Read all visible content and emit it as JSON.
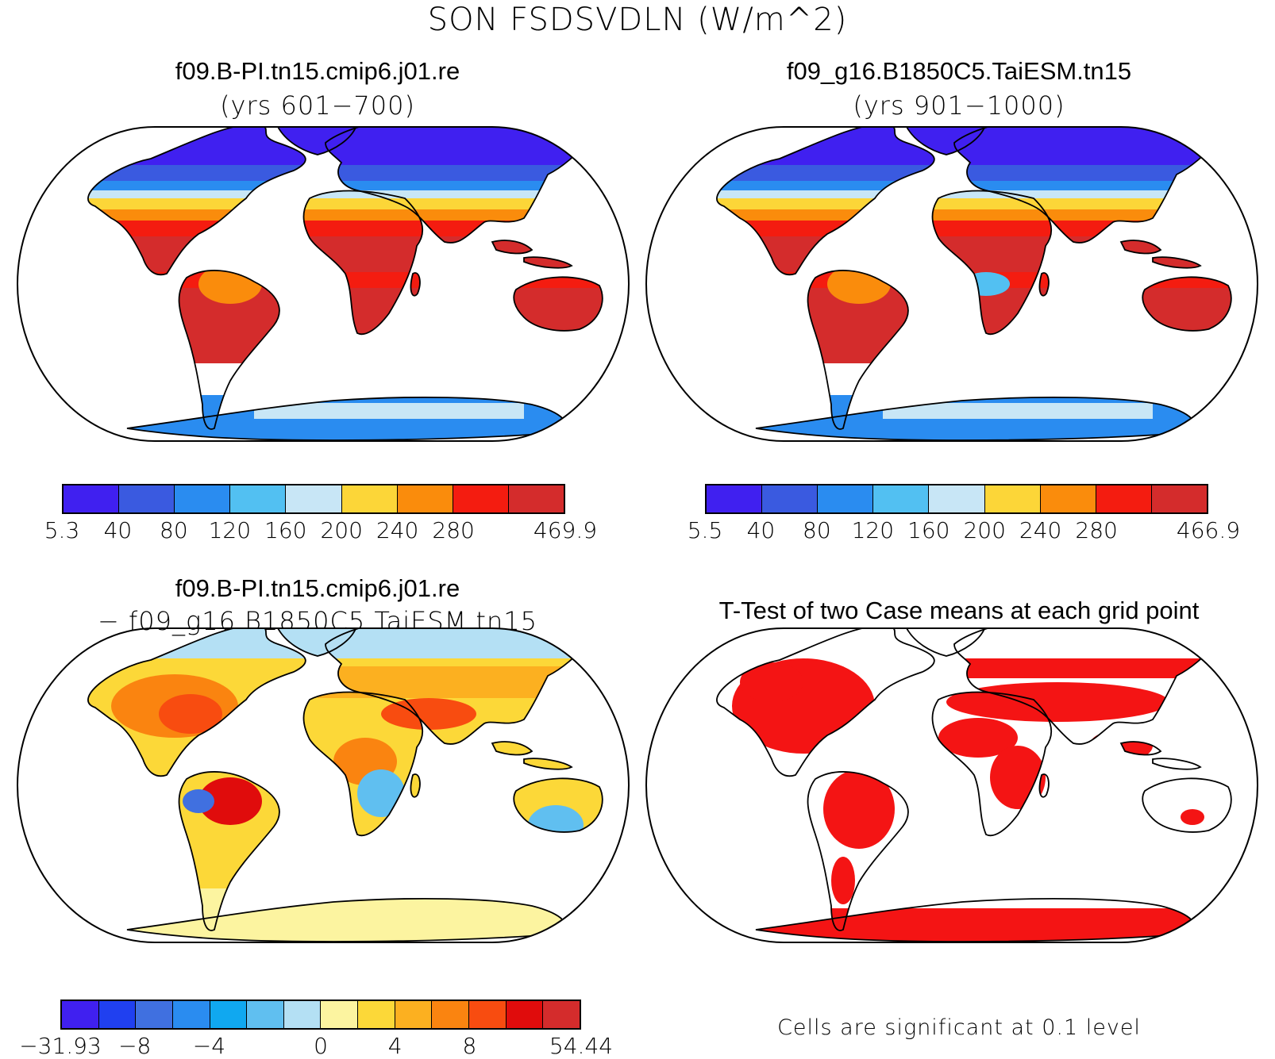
{
  "title": "SON FSDSVDLN (W/m^2)",
  "panels": [
    {
      "title": "f09.B-PI.tn15.cmip6.j01.re",
      "subtitle": "(yrs 601−700)"
    },
    {
      "title": "f09_g16.B1850C5.TaiESM.tn15",
      "subtitle": "(yrs 901−1000)"
    },
    {
      "title": "f09.B-PI.tn15.cmip6.j01.re",
      "subtitle": "− f09_g16.B1850C5.TaiESM.tn15"
    },
    {
      "title": "T-Test of two Case means at each grid point",
      "note": "Cells are significant at 0.1 level"
    }
  ],
  "colorbars": [
    {
      "colors": [
        "#4020f0",
        "#3a5ae0",
        "#2a8cf0",
        "#52c0f2",
        "#c8e6f6",
        "#fcd638",
        "#fa8c0c",
        "#f41c10",
        "#d42c2c"
      ],
      "labels": [
        "5.3",
        "40",
        "80",
        "120",
        "160",
        "200",
        "240",
        "280",
        "469.9"
      ]
    },
    {
      "colors": [
        "#4020f0",
        "#3a5ae0",
        "#2a8cf0",
        "#52c0f2",
        "#c8e6f6",
        "#fcd638",
        "#fa8c0c",
        "#f41c10",
        "#d42c2c"
      ],
      "labels": [
        "5.5",
        "40",
        "80",
        "120",
        "160",
        "200",
        "240",
        "280",
        "466.9"
      ]
    },
    {
      "colors": [
        "#4020f0",
        "#2040f0",
        "#4070e0",
        "#2a8cf0",
        "#10a8f0",
        "#60bff0",
        "#b4e0f4",
        "#fcf4a0",
        "#fcd838",
        "#fcb020",
        "#fa8410",
        "#f84c10",
        "#e00c0c",
        "#d42c2c"
      ],
      "labels": [
        "−31.93",
        "−8",
        "−4",
        "0",
        "4",
        "8",
        "54.44"
      ]
    }
  ],
  "significance_color": "#f41414"
}
